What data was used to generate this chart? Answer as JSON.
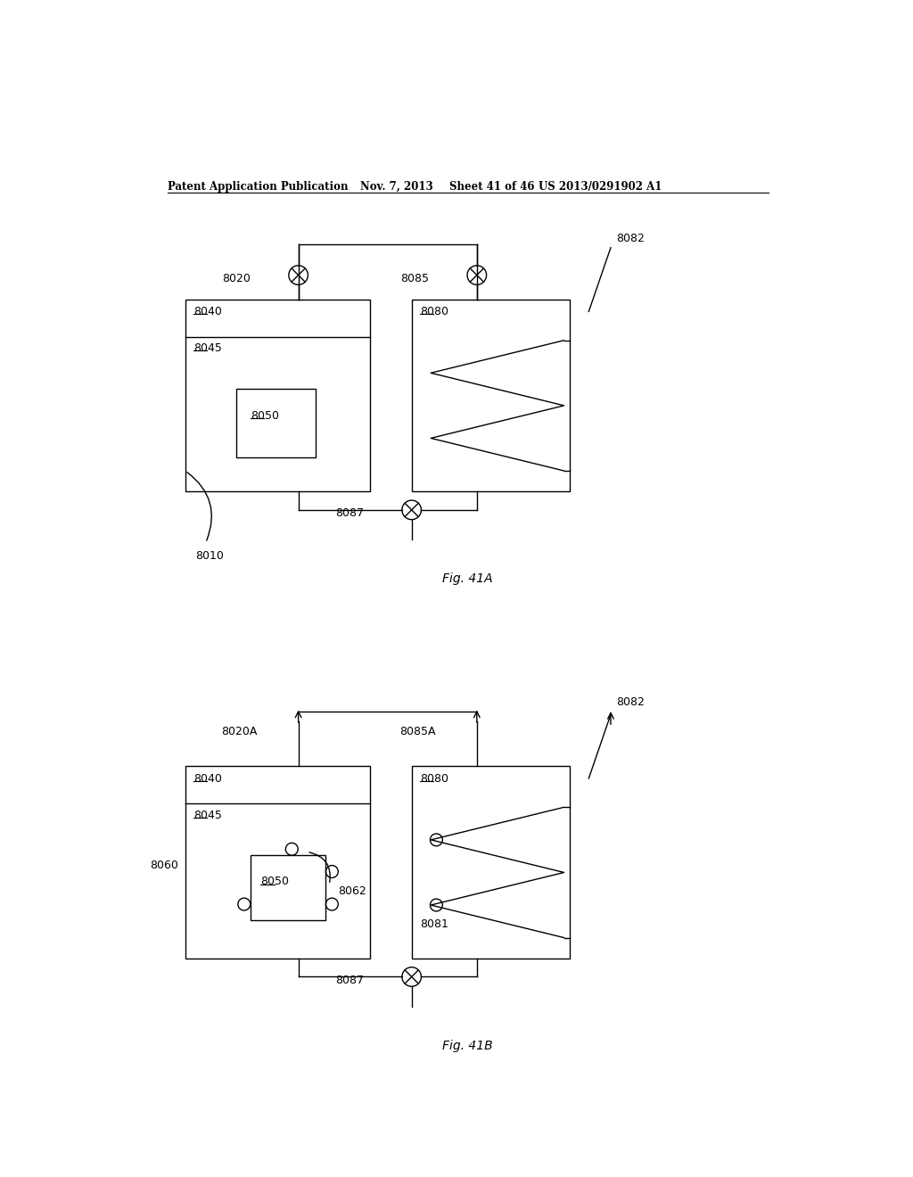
{
  "bg_color": "#ffffff",
  "line_color": "#000000",
  "header_text": "Patent Application Publication",
  "header_date": "Nov. 7, 2013",
  "header_sheet": "Sheet 41 of 46",
  "header_patent": "US 2013/0291902 A1",
  "fig_a_label": "Fig. 41A",
  "fig_b_label": "Fig. 41B",
  "lw": 1.0
}
